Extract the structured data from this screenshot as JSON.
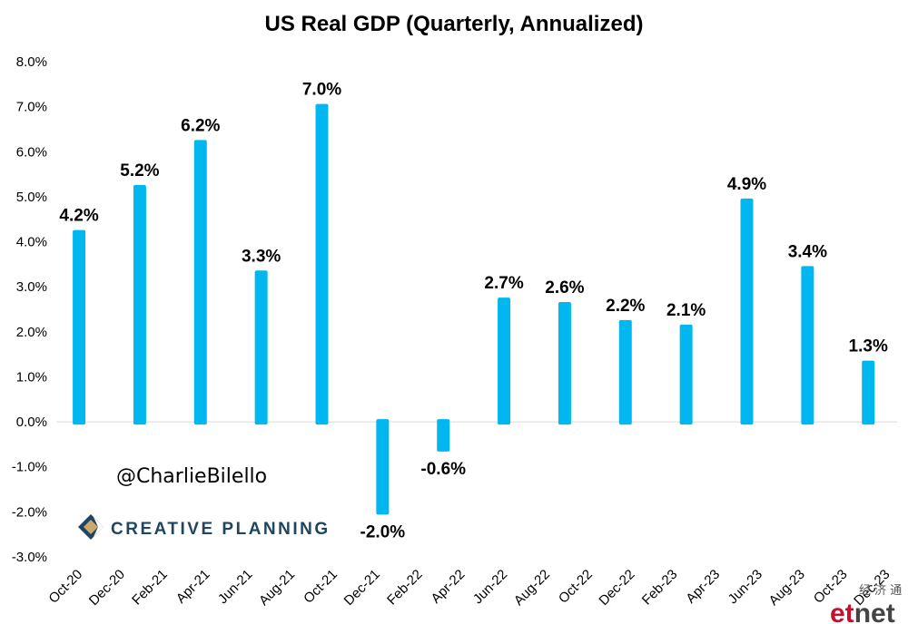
{
  "chart_data": {
    "type": "bar",
    "title": "US Real GDP (Quarterly, Annualized)",
    "categories": [
      "Oct-20",
      "Dec-20",
      "Feb-21",
      "Apr-21",
      "Jun-21",
      "Aug-21",
      "Oct-21",
      "Dec-21",
      "Feb-22",
      "Apr-22",
      "Jun-22",
      "Aug-22",
      "Oct-22",
      "Dec-22",
      "Feb-23",
      "Apr-23",
      "Jun-23",
      "Aug-23",
      "Oct-23",
      "Dec-23"
    ],
    "bars": [
      {
        "x_index": 0.5,
        "value": 4.2,
        "label": "4.2%"
      },
      {
        "x_index": 2.5,
        "value": 5.2,
        "label": "5.2%"
      },
      {
        "x_index": 4.5,
        "value": 6.2,
        "label": "6.2%"
      },
      {
        "x_index": 6.5,
        "value": 3.3,
        "label": "3.3%"
      },
      {
        "x_index": 8.5,
        "value": 7.0,
        "label": "7.0%"
      },
      {
        "x_index": 10.5,
        "value": -2.0,
        "label": "-2.0%"
      },
      {
        "x_index": 12.5,
        "value": -0.6,
        "label": "-0.6%"
      },
      {
        "x_index": 14.5,
        "value": 2.7,
        "label": "2.7%"
      },
      {
        "x_index": 16.5,
        "value": 2.6,
        "label": "2.6%"
      },
      {
        "x_index": 18.5,
        "value": 2.2,
        "label": "2.2%"
      },
      {
        "x_index": 20.5,
        "value": 2.1,
        "label": "2.1%"
      },
      {
        "x_index": 22.5,
        "value": 4.9,
        "label": "4.9%"
      },
      {
        "x_index": 24.5,
        "value": 3.4,
        "label": "3.4%"
      },
      {
        "x_index": 26.5,
        "value": 1.3,
        "label": "1.3%"
      }
    ],
    "ylim": [
      -3.0,
      8.0
    ],
    "yticks": [
      "8.0%",
      "7.0%",
      "6.0%",
      "5.0%",
      "4.0%",
      "3.0%",
      "2.0%",
      "1.0%",
      "0.0%",
      "-1.0%",
      "-2.0%",
      "-3.0%"
    ],
    "ytick_values": [
      8,
      7,
      6,
      5,
      4,
      3,
      2,
      1,
      0,
      -1,
      -2,
      -3
    ],
    "grid": false,
    "bar_color": "#00b8ef"
  },
  "annotations": {
    "handle": "@CharlieBilello",
    "brand": "CREATIVE PLANNING",
    "brand_color": "#1f4560",
    "brand_accent_color": "#c9a96e"
  },
  "watermark": {
    "chinese": "经 济 通",
    "logo_et": "et",
    "logo_net": "net",
    "et_color": "#c8102e",
    "net_color": "#444444"
  }
}
